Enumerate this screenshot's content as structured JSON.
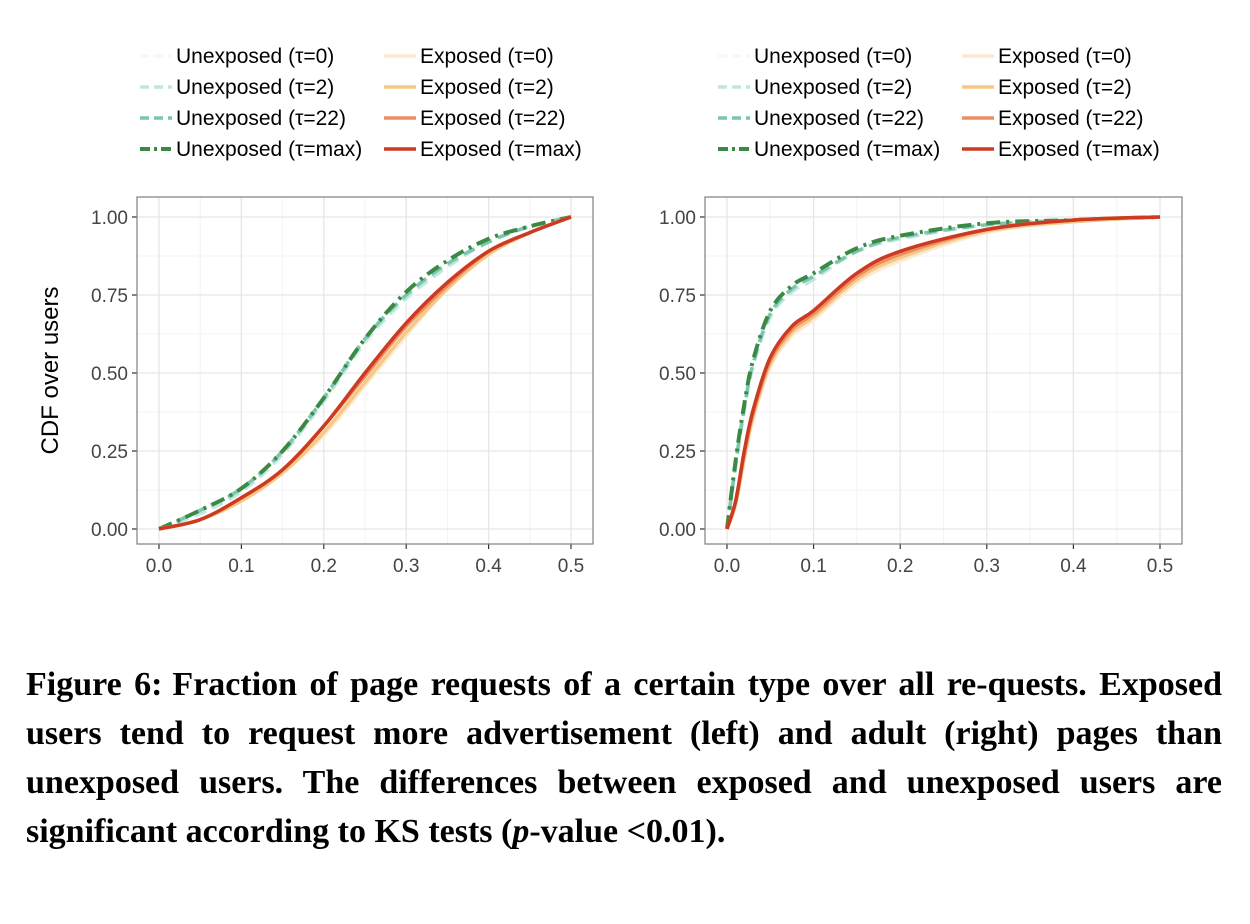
{
  "chart_data": [
    {
      "type": "line",
      "panel": "left",
      "title": "",
      "xlabel": "",
      "ylabel": "CDF over users",
      "xlim": [
        0.0,
        0.5
      ],
      "ylim": [
        0.0,
        1.0
      ],
      "xticks": [
        "0.0",
        "0.1",
        "0.2",
        "0.3",
        "0.4",
        "0.5"
      ],
      "yticks": [
        "0.00",
        "0.25",
        "0.50",
        "0.75",
        "1.00"
      ],
      "grid": true,
      "legend_position": "top",
      "series": [
        {
          "name": "Unexposed (τ=0)",
          "color": "#f4f9f8",
          "dash": "dashed",
          "x": [
            0.0,
            0.05,
            0.1,
            0.15,
            0.2,
            0.25,
            0.3,
            0.35,
            0.4,
            0.45,
            0.5
          ],
          "y": [
            0.0,
            0.05,
            0.12,
            0.24,
            0.41,
            0.59,
            0.73,
            0.84,
            0.92,
            0.97,
            1.0
          ]
        },
        {
          "name": "Unexposed (τ=2)",
          "color": "#bfe6e0",
          "dash": "dashed",
          "x": [
            0.0,
            0.05,
            0.1,
            0.15,
            0.2,
            0.25,
            0.3,
            0.35,
            0.4,
            0.45,
            0.5
          ],
          "y": [
            0.0,
            0.05,
            0.12,
            0.24,
            0.41,
            0.6,
            0.74,
            0.84,
            0.92,
            0.97,
            1.0
          ]
        },
        {
          "name": "Unexposed (τ=22)",
          "color": "#7cc6ad",
          "dash": "dashed",
          "x": [
            0.0,
            0.05,
            0.1,
            0.15,
            0.2,
            0.25,
            0.3,
            0.35,
            0.4,
            0.45,
            0.5
          ],
          "y": [
            0.0,
            0.06,
            0.13,
            0.25,
            0.42,
            0.61,
            0.75,
            0.85,
            0.92,
            0.97,
            1.0
          ]
        },
        {
          "name": "Unexposed (τ=max)",
          "color": "#3a8a46",
          "dash": "dashdot",
          "x": [
            0.0,
            0.05,
            0.1,
            0.15,
            0.2,
            0.25,
            0.3,
            0.35,
            0.4,
            0.45,
            0.5
          ],
          "y": [
            0.0,
            0.06,
            0.13,
            0.25,
            0.42,
            0.61,
            0.76,
            0.86,
            0.93,
            0.97,
            1.0
          ]
        },
        {
          "name": "Exposed (τ=0)",
          "color": "#fde9cf",
          "dash": "solid",
          "x": [
            0.0,
            0.05,
            0.1,
            0.15,
            0.2,
            0.25,
            0.3,
            0.35,
            0.4,
            0.45,
            0.5
          ],
          "y": [
            0.0,
            0.03,
            0.09,
            0.18,
            0.3,
            0.46,
            0.62,
            0.77,
            0.88,
            0.95,
            1.0
          ]
        },
        {
          "name": "Exposed (τ=2)",
          "color": "#f5c886",
          "dash": "solid",
          "x": [
            0.0,
            0.05,
            0.1,
            0.15,
            0.2,
            0.25,
            0.3,
            0.35,
            0.4,
            0.45,
            0.5
          ],
          "y": [
            0.0,
            0.03,
            0.09,
            0.18,
            0.31,
            0.47,
            0.63,
            0.77,
            0.88,
            0.95,
            1.0
          ]
        },
        {
          "name": "Exposed (τ=22)",
          "color": "#ee8d62",
          "dash": "solid",
          "x": [
            0.0,
            0.05,
            0.1,
            0.15,
            0.2,
            0.25,
            0.3,
            0.35,
            0.4,
            0.45,
            0.5
          ],
          "y": [
            0.0,
            0.03,
            0.1,
            0.19,
            0.33,
            0.49,
            0.65,
            0.78,
            0.89,
            0.95,
            1.0
          ]
        },
        {
          "name": "Exposed (τ=max)",
          "color": "#cc3a22",
          "dash": "solid",
          "x": [
            0.0,
            0.05,
            0.1,
            0.15,
            0.2,
            0.25,
            0.3,
            0.35,
            0.4,
            0.45,
            0.5
          ],
          "y": [
            0.0,
            0.03,
            0.1,
            0.19,
            0.33,
            0.5,
            0.66,
            0.79,
            0.89,
            0.95,
            1.0
          ]
        }
      ]
    },
    {
      "type": "line",
      "panel": "right",
      "title": "",
      "xlabel": "",
      "ylabel": "",
      "xlim": [
        0.0,
        0.5
      ],
      "ylim": [
        0.0,
        1.0
      ],
      "xticks": [
        "0.0",
        "0.1",
        "0.2",
        "0.3",
        "0.4",
        "0.5"
      ],
      "yticks": [
        "0.00",
        "0.25",
        "0.50",
        "0.75",
        "1.00"
      ],
      "grid": true,
      "legend_position": "top",
      "series": [
        {
          "name": "Unexposed (τ=0)",
          "color": "#f4f9f8",
          "dash": "dashed",
          "x": [
            0.0,
            0.01,
            0.02,
            0.03,
            0.05,
            0.075,
            0.1,
            0.15,
            0.2,
            0.3,
            0.4,
            0.5
          ],
          "y": [
            0.0,
            0.2,
            0.38,
            0.52,
            0.68,
            0.76,
            0.8,
            0.89,
            0.93,
            0.975,
            0.99,
            1.0
          ]
        },
        {
          "name": "Unexposed (τ=2)",
          "color": "#bfe6e0",
          "dash": "dashed",
          "x": [
            0.0,
            0.01,
            0.02,
            0.03,
            0.05,
            0.075,
            0.1,
            0.15,
            0.2,
            0.3,
            0.4,
            0.5
          ],
          "y": [
            0.0,
            0.2,
            0.38,
            0.52,
            0.68,
            0.76,
            0.8,
            0.89,
            0.93,
            0.975,
            0.99,
            1.0
          ]
        },
        {
          "name": "Unexposed (τ=22)",
          "color": "#7cc6ad",
          "dash": "dashed",
          "x": [
            0.0,
            0.01,
            0.02,
            0.03,
            0.05,
            0.075,
            0.1,
            0.15,
            0.2,
            0.3,
            0.4,
            0.5
          ],
          "y": [
            0.0,
            0.21,
            0.39,
            0.53,
            0.69,
            0.77,
            0.81,
            0.89,
            0.935,
            0.975,
            0.99,
            1.0
          ]
        },
        {
          "name": "Unexposed (τ=max)",
          "color": "#3a8a46",
          "dash": "dashdot",
          "x": [
            0.0,
            0.01,
            0.02,
            0.03,
            0.05,
            0.075,
            0.1,
            0.15,
            0.2,
            0.3,
            0.4,
            0.5
          ],
          "y": [
            0.0,
            0.22,
            0.4,
            0.54,
            0.7,
            0.78,
            0.82,
            0.9,
            0.94,
            0.98,
            0.99,
            1.0
          ]
        },
        {
          "name": "Exposed (τ=0)",
          "color": "#fde9cf",
          "dash": "solid",
          "x": [
            0.0,
            0.01,
            0.02,
            0.03,
            0.05,
            0.075,
            0.1,
            0.15,
            0.2,
            0.3,
            0.4,
            0.5
          ],
          "y": [
            0.0,
            0.08,
            0.22,
            0.35,
            0.52,
            0.62,
            0.67,
            0.79,
            0.86,
            0.95,
            0.985,
            1.0
          ]
        },
        {
          "name": "Exposed (τ=2)",
          "color": "#f5c886",
          "dash": "solid",
          "x": [
            0.0,
            0.01,
            0.02,
            0.03,
            0.05,
            0.075,
            0.1,
            0.15,
            0.2,
            0.3,
            0.4,
            0.5
          ],
          "y": [
            0.0,
            0.08,
            0.23,
            0.36,
            0.53,
            0.63,
            0.68,
            0.8,
            0.87,
            0.955,
            0.985,
            1.0
          ]
        },
        {
          "name": "Exposed (τ=22)",
          "color": "#ee8d62",
          "dash": "solid",
          "x": [
            0.0,
            0.01,
            0.02,
            0.03,
            0.05,
            0.075,
            0.1,
            0.15,
            0.2,
            0.3,
            0.4,
            0.5
          ],
          "y": [
            0.0,
            0.09,
            0.24,
            0.37,
            0.54,
            0.64,
            0.69,
            0.81,
            0.88,
            0.96,
            0.99,
            1.0
          ]
        },
        {
          "name": "Exposed (τ=max)",
          "color": "#cc3a22",
          "dash": "solid",
          "x": [
            0.0,
            0.01,
            0.02,
            0.03,
            0.05,
            0.075,
            0.1,
            0.15,
            0.2,
            0.3,
            0.4,
            0.5
          ],
          "y": [
            0.0,
            0.09,
            0.25,
            0.38,
            0.55,
            0.65,
            0.7,
            0.82,
            0.89,
            0.96,
            0.99,
            1.0
          ]
        }
      ]
    }
  ],
  "caption": {
    "label": "Figure 6:",
    "text_a": "Fraction of page requests of a certain type over all re-quests. Exposed users tend to request more advertisement (left) and adult (right) pages than unexposed users. The differences between exposed and unexposed users are significant according to KS tests (",
    "p": "p",
    "text_b": "-value <0.01)."
  }
}
